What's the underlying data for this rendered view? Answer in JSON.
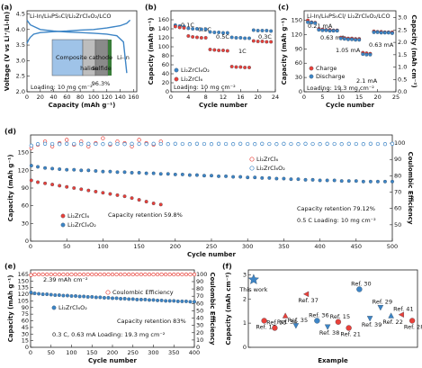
{
  "chart_data": [
    {
      "type": "line",
      "label": "(a)",
      "title": "Li-In/Li₆PS₅Cl/Li₂ZrCl₆O₂/LCO",
      "xlabel": "Capacity (mAh g⁻¹)",
      "ylabel": "Voltage (V vs Li⁺/Li-In)",
      "xlim": [
        0,
        165
      ],
      "xticks": [
        0,
        20,
        40,
        60,
        80,
        100,
        120,
        140,
        160
      ],
      "ylim": [
        2.0,
        4.6
      ],
      "yticks": [
        {
          "value": 2,
          "label": "2.0"
        },
        2.5,
        {
          "value": 3,
          "label": "3.0"
        },
        3.5,
        {
          "value": 4,
          "label": "4.0"
        },
        4.5
      ],
      "series": [
        {
          "color": "#3d85c6",
          "marker": "none",
          "x": [
            0,
            2,
            5,
            10,
            20,
            40,
            60,
            80,
            100,
            120,
            140,
            150,
            155
          ],
          "values": [
            3.55,
            3.65,
            3.75,
            3.85,
            3.9,
            3.93,
            3.95,
            3.98,
            4.0,
            4.05,
            4.12,
            4.2,
            4.3
          ]
        },
        {
          "color": "#3d85c6",
          "marker": "none",
          "x": [
            0,
            5,
            20,
            40,
            60,
            80,
            100,
            120,
            135,
            145,
            150
          ],
          "values": [
            4.3,
            4.15,
            4.0,
            3.95,
            3.92,
            3.9,
            3.88,
            3.85,
            3.8,
            3.6,
            2.6
          ]
        }
      ],
      "annotations": [
        "96.3%",
        "Loading: 10 mg cm⁻²",
        "Composite cathode",
        "halide",
        "sulfide",
        "Li-In"
      ]
    },
    {
      "type": "line",
      "label": "(b)",
      "xlabel": "Cycle number",
      "ylabel": "Capacity (mAh g⁻¹)",
      "xlim": [
        0,
        24
      ],
      "xticks": [
        0,
        4,
        8,
        12,
        16,
        20,
        24
      ],
      "ylim": [
        0,
        180
      ],
      "yticks": [
        0,
        20,
        40,
        60,
        80,
        100,
        120,
        140,
        160
      ],
      "series": [
        {
          "name": "Li₂ZrCl₆O₂",
          "color": "#3d85c6",
          "marker": "circle",
          "x": [
            1,
            2,
            3,
            4,
            5,
            6,
            7,
            8,
            9,
            10,
            11,
            12,
            13,
            14,
            15,
            16,
            17,
            18,
            19,
            20,
            21,
            22,
            23
          ],
          "values": [
            148,
            146,
            145,
            141,
            140,
            140,
            139,
            139,
            133,
            132,
            132,
            131,
            131,
            121,
            120,
            120,
            119,
            119,
            137,
            136,
            136,
            136,
            135
          ]
        },
        {
          "name": "Li₂ZrCl₆",
          "color": "#e8413a",
          "marker": "circle",
          "x": [
            1,
            2,
            3,
            4,
            5,
            6,
            7,
            8,
            9,
            10,
            11,
            12,
            13,
            14,
            15,
            16,
            17,
            18,
            19,
            20,
            21,
            22,
            23
          ],
          "values": [
            145,
            143,
            142,
            124,
            122,
            121,
            120,
            120,
            94,
            93,
            92,
            92,
            91,
            56,
            55,
            55,
            54,
            54,
            113,
            112,
            112,
            111,
            111
          ]
        }
      ],
      "annotations": [
        "0.1C",
        "0.3C",
        "0.5C",
        "1C",
        "0.3C",
        "Loading: 10 mg cm⁻²"
      ]
    },
    {
      "type": "line",
      "label": "(c)",
      "title": "Li-In/Li₆PS₅Cl/ Li₂ZrCl₆O₂/LCO",
      "xlabel": "Cycle number",
      "ylabel": "Capacity (mAh g⁻¹)",
      "y2label": "Capacity (mAh cm⁻²)",
      "xlim": [
        0,
        25
      ],
      "xticks": [
        0,
        5,
        10,
        15,
        20,
        25
      ],
      "ylim": [
        0,
        170
      ],
      "yticks": [
        0,
        30,
        60,
        90,
        120,
        150
      ],
      "y2lim": [
        0,
        3.28
      ],
      "y2ticks": [
        {
          "value": 0,
          "label": "0.0"
        },
        0.5,
        {
          "value": 1,
          "label": "1.0"
        },
        1.5,
        {
          "value": 2,
          "label": "2.0"
        },
        2.5,
        {
          "value": 3,
          "label": "3.0"
        }
      ],
      "series": [
        {
          "name": "Charge",
          "color": "#e8413a",
          "marker": "circle",
          "x": [
            1,
            2,
            3,
            4,
            5,
            6,
            7,
            8,
            9,
            10,
            11,
            12,
            13,
            14,
            15,
            16,
            17,
            18,
            19,
            20,
            21,
            22,
            23,
            24
          ],
          "values": [
            150,
            146,
            145,
            132,
            131,
            130,
            130,
            129,
            129,
            114,
            113,
            112,
            112,
            111,
            111,
            82,
            81,
            80,
            127,
            126,
            126,
            125,
            125,
            125
          ]
        },
        {
          "name": "Discharge",
          "color": "#3d85c6",
          "marker": "circle",
          "x": [
            1,
            2,
            3,
            4,
            5,
            6,
            7,
            8,
            9,
            10,
            11,
            12,
            13,
            14,
            15,
            16,
            17,
            18,
            19,
            20,
            21,
            22,
            23,
            24
          ],
          "values": [
            146,
            145,
            144,
            130,
            129,
            129,
            128,
            128,
            128,
            112,
            111,
            110,
            110,
            109,
            109,
            79,
            78,
            78,
            125,
            125,
            124,
            124,
            124,
            123
          ]
        }
      ],
      "annotations": [
        "0.21 mA",
        "0.63 mA",
        "1.05 mA",
        "2.1 mA",
        "0.63 mA",
        "Loading: 19.3 mg cm⁻²"
      ]
    },
    {
      "type": "line",
      "label": "(d)",
      "xlabel": "Cycle number",
      "ylabel": "Capacity (mAh g⁻¹)",
      "y2label": "Coulombic Efficiency",
      "xlim": [
        0,
        500
      ],
      "xticks": [
        0,
        50,
        100,
        150,
        200,
        250,
        300,
        350,
        400,
        450,
        500
      ],
      "ylim": [
        0,
        180
      ],
      "yticks": [
        0,
        30,
        60,
        90,
        120,
        150
      ],
      "y2lim": [
        40,
        105
      ],
      "y2ticks": [
        50,
        60,
        70,
        80,
        90,
        100
      ],
      "series": [
        {
          "name": "Li₂ZrCl₆",
          "color": "#e8413a",
          "marker": "circle",
          "x": [
            1,
            10,
            20,
            30,
            40,
            50,
            60,
            70,
            80,
            90,
            100,
            110,
            120,
            130,
            140,
            150,
            160,
            170,
            180
          ],
          "values": [
            103,
            100,
            98,
            96,
            94,
            92,
            90,
            88,
            86,
            84,
            82,
            80,
            78,
            76,
            73,
            70,
            67,
            64,
            62
          ]
        },
        {
          "name": "Li₂ZrCl₆O₂",
          "color": "#3d85c6",
          "marker": "circle",
          "x": [
            1,
            10,
            20,
            30,
            40,
            50,
            60,
            70,
            80,
            90,
            100,
            110,
            120,
            130,
            140,
            150,
            160,
            170,
            180,
            190,
            200,
            210,
            220,
            230,
            240,
            250,
            260,
            270,
            280,
            290,
            300,
            310,
            320,
            330,
            340,
            350,
            360,
            370,
            380,
            390,
            400,
            410,
            420,
            430,
            440,
            450,
            460,
            470,
            480,
            490,
            500
          ],
          "values": [
            128,
            126,
            124,
            123,
            122,
            121,
            121,
            120,
            120,
            119,
            118,
            118,
            117,
            117,
            116,
            116,
            115,
            115,
            114,
            114,
            113,
            113,
            112,
            112,
            111,
            111,
            110,
            110,
            109,
            109,
            108,
            108,
            107,
            107,
            106,
            106,
            105,
            105,
            104,
            104,
            103,
            103,
            103,
            102,
            102,
            102,
            101,
            101,
            101,
            101,
            101
          ]
        },
        {
          "name": "Li₂ZrCl₆",
          "color": "#e8413a",
          "marker": "open",
          "axis": "y2",
          "x": [
            1,
            10,
            20,
            30,
            40,
            50,
            60,
            70,
            80,
            90,
            100,
            110,
            120,
            130,
            140,
            150,
            160,
            170,
            180
          ],
          "values": [
            97,
            99,
            101,
            98,
            100,
            102,
            99,
            101,
            98,
            100,
            103,
            99,
            101,
            100,
            98,
            102,
            100,
            99,
            101
          ]
        },
        {
          "name": "Li₂ZrCl₆O₂",
          "color": "#3d85c6",
          "marker": "open",
          "axis": "y2",
          "x": [
            1,
            10,
            20,
            30,
            40,
            50,
            60,
            70,
            80,
            90,
            100,
            110,
            120,
            130,
            140,
            150,
            160,
            170,
            180,
            190,
            200,
            210,
            220,
            230,
            240,
            250,
            260,
            270,
            280,
            290,
            300,
            310,
            320,
            330,
            340,
            350,
            360,
            370,
            380,
            390,
            400,
            410,
            420,
            430,
            440,
            450,
            460,
            470,
            480,
            490,
            500
          ],
          "values": [
            98.5,
            99.4,
            99.6,
            99.5,
            99.4,
            99.6,
            99.5,
            99.4,
            99.6,
            99.5,
            99.4,
            99.6,
            99.5,
            99.4,
            99.6,
            99.5,
            99.4,
            99.6,
            99.5,
            99.4,
            99.6,
            99.5,
            99.4,
            99.6,
            99.5,
            99.4,
            99.6,
            99.5,
            99.4,
            99.6,
            99.5,
            99.4,
            99.6,
            99.5,
            99.4,
            99.6,
            99.5,
            99.4,
            99.6,
            99.5,
            99.4,
            99.6,
            99.5,
            99.4,
            99.6,
            99.5,
            99.4,
            99.6,
            99.5,
            99.4,
            99.6
          ]
        }
      ],
      "annotations": [
        "Capacity retention 59.8%",
        "Capacity retention 79.12%",
        "0.5 C Loading: 10 mg cm⁻²"
      ]
    },
    {
      "type": "line",
      "label": "(e)",
      "xlabel": "Cycle number",
      "ylabel": "Capacity (mAh g⁻¹)",
      "y2label": "Coulombic Efficiency",
      "xlim": [
        0,
        400
      ],
      "xticks": [
        0,
        50,
        100,
        150,
        200,
        250,
        300,
        350,
        400
      ],
      "ylim": [
        0,
        175
      ],
      "yticks": [
        0,
        15,
        30,
        45,
        60,
        75,
        90,
        105,
        120,
        135,
        150,
        165
      ],
      "y2lim": [
        0,
        106
      ],
      "y2ticks": [
        0,
        10,
        20,
        30,
        40,
        50,
        60,
        70,
        80,
        90,
        100
      ],
      "series": [
        {
          "name": "Coulombic Efficiency",
          "color": "#e8413a",
          "marker": "open",
          "axis": "y2",
          "x": [
            1,
            10,
            20,
            30,
            40,
            50,
            60,
            70,
            80,
            90,
            100,
            110,
            120,
            130,
            140,
            150,
            160,
            170,
            180,
            190,
            200,
            210,
            220,
            230,
            240,
            250,
            260,
            270,
            280,
            290,
            300,
            310,
            320,
            330,
            340,
            350,
            360,
            370,
            380,
            390,
            400
          ],
          "values": [
            99.0,
            99.8,
            99.8,
            99.8,
            99.8,
            99.8,
            99.8,
            99.8,
            99.8,
            99.8,
            99.8,
            99.8,
            99.8,
            99.8,
            99.8,
            99.8,
            99.8,
            99.8,
            99.8,
            99.8,
            99.8,
            99.8,
            99.8,
            99.8,
            99.8,
            99.8,
            99.8,
            99.8,
            99.8,
            99.8,
            99.8,
            99.8,
            99.8,
            99.8,
            99.8,
            99.8,
            99.8,
            99.8,
            99.8,
            99.8,
            99.8
          ]
        },
        {
          "name": "Li₂ZrCl₆O₂",
          "color": "#3d85c6",
          "marker": "circle",
          "x": [
            1,
            10,
            20,
            30,
            40,
            50,
            60,
            70,
            80,
            90,
            100,
            110,
            120,
            130,
            140,
            150,
            160,
            170,
            180,
            190,
            200,
            210,
            220,
            230,
            240,
            250,
            260,
            270,
            280,
            290,
            300,
            310,
            320,
            330,
            340,
            350,
            360,
            370,
            380,
            390,
            400
          ],
          "values": [
            124,
            122,
            121,
            120,
            120,
            119,
            118,
            118,
            117,
            117,
            116,
            116,
            115,
            115,
            114,
            114,
            113,
            113,
            112,
            112,
            111,
            111,
            110,
            110,
            109,
            109,
            108,
            108,
            108,
            107,
            107,
            106,
            106,
            105,
            105,
            105,
            104,
            104,
            104,
            103,
            103
          ]
        }
      ],
      "annotations": [
        "2.39 mAh cm⁻²",
        "Capacity retention 83%",
        "0.3 C, 0.63 mA Loading: 19.3 mg cm⁻²"
      ]
    },
    {
      "type": "scatter",
      "label": "(f)",
      "xlabel": "Example",
      "ylabel": "Capacity (mAh cm⁻²)",
      "ylim": [
        0,
        3.2
      ],
      "yticks": [
        0,
        1,
        2,
        3
      ],
      "categories": [
        "This work",
        "Ref. 17",
        "Ref. 33",
        "Ref. 34",
        "Ref. 35",
        "Ref. 37",
        "Ref. 36",
        "Ref. 38",
        "Ref. 15",
        "Ref. 21",
        "Ref. 30",
        "Ref. 39",
        "Ref. 29",
        "Ref. 22",
        "Ref. 41",
        "Ref. 28"
      ],
      "values": [
        2.8,
        1.1,
        0.8,
        1.3,
        0.9,
        2.2,
        1.1,
        0.85,
        1.05,
        0.8,
        2.4,
        1.2,
        1.65,
        1.3,
        1.35,
        1.1
      ],
      "colors": [
        "#3d85c6",
        "#e8413a",
        "#e8413a",
        "#e8413a",
        "#3d85c6",
        "#e8413a",
        "#3d85c6",
        "#3d85c6",
        "#e8413a",
        "#e8413a",
        "#3d85c6",
        "#3d85c6",
        "#3d85c6",
        "#3d85c6",
        "#e8413a",
        "#e8413a"
      ],
      "markers": [
        "star",
        "circle",
        "circle",
        "triangle",
        "down-triangle",
        "left-triangle",
        "circle",
        "down-triangle",
        "circle",
        "circle",
        "circle",
        "down-triangle",
        "down-triangle",
        "triangle",
        "left-triangle",
        "circle"
      ]
    }
  ]
}
